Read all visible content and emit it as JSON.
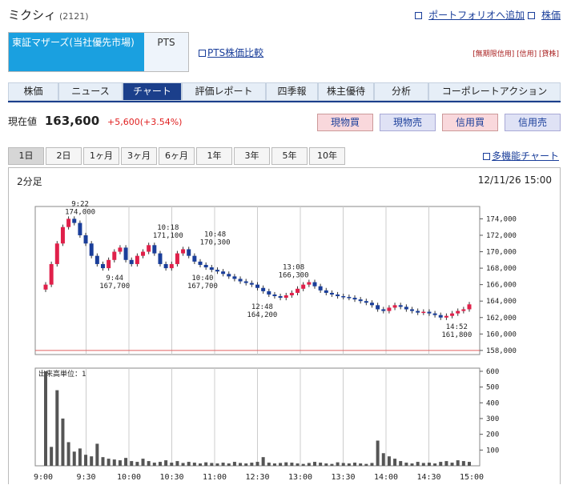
{
  "header": {
    "company": "ミクシィ",
    "code": "(2121)",
    "portfolio_link": "ポートフォリオへ追加",
    "stock_link": "株価"
  },
  "market": {
    "selected": "東証マザーズ(当社優先市場)",
    "other": "PTS",
    "pts_link": "PTS株価比較",
    "credit_info": "[無期限信用] [信用] [貸株]"
  },
  "tabs": [
    "株価",
    "ニュース",
    "チャート",
    "評価レポート",
    "四季報",
    "株主優待",
    "分析",
    "コーポレートアクション"
  ],
  "quote": {
    "label": "現在値",
    "price": "163,600",
    "change": "+5,600(+3.54%)"
  },
  "trade_buttons": [
    "現物買",
    "現物売",
    "信用買",
    "信用売"
  ],
  "periods": [
    "1日",
    "2日",
    "1ヶ月",
    "3ヶ月",
    "6ヶ月",
    "1年",
    "3年",
    "5年",
    "10年"
  ],
  "multi_chart": "多機能チャート",
  "chart": {
    "interval": "2分足",
    "datetime": "12/11/26 15:00",
    "volume_unit": "出来高単位：1"
  },
  "chart_data": {
    "type": "candlestick",
    "price_axis": {
      "ticks": [
        "174,000",
        "172,000",
        "170,000",
        "168,000",
        "166,000",
        "164,000",
        "162,000",
        "160,000",
        "158,000"
      ],
      "ylim": [
        157500,
        175500
      ]
    },
    "volume_axis": {
      "ticks": [
        "600",
        "500",
        "400",
        "300",
        "200",
        "100"
      ],
      "ylim": [
        0,
        620
      ]
    },
    "x_ticks": [
      "9:00",
      "9:30",
      "10:00",
      "10:30",
      "11:00",
      "12:30",
      "13:00",
      "13:30",
      "14:00",
      "14:30",
      "15:00"
    ],
    "reference_line": 158000,
    "annotations": [
      {
        "time": "9:22",
        "price": 174000,
        "label_time": "9:22",
        "label_price": "174,000",
        "pos": "above"
      },
      {
        "time": "9:44",
        "price": 167700,
        "label_time": "9:44",
        "label_price": "167,700",
        "pos": "below"
      },
      {
        "time": "10:18",
        "price": 171100,
        "label_time": "10:18",
        "label_price": "171,100",
        "pos": "above"
      },
      {
        "time": "10:40",
        "price": 167700,
        "label_time": "10:40",
        "label_price": "167,700",
        "pos": "below"
      },
      {
        "time": "10:48",
        "price": 170300,
        "label_time": "10:48",
        "label_price": "170,300",
        "pos": "above"
      },
      {
        "time": "12:48",
        "price": 164200,
        "label_time": "12:48",
        "label_price": "164,200",
        "pos": "below"
      },
      {
        "time": "13:08",
        "price": 166300,
        "label_time": "13:08",
        "label_price": "166,300",
        "pos": "above"
      },
      {
        "time": "14:52",
        "price": 161800,
        "label_time": "14:52",
        "label_price": "161,800",
        "pos": "below"
      }
    ],
    "close_series": [
      166000,
      168500,
      171000,
      173000,
      174000,
      173500,
      172000,
      171000,
      169500,
      168500,
      168000,
      169000,
      170000,
      170500,
      169000,
      168500,
      169500,
      170000,
      170800,
      169800,
      168500,
      168000,
      168500,
      169800,
      170300,
      169500,
      168800,
      168400,
      168100,
      167800,
      167600,
      167300,
      167000,
      166700,
      166400,
      166200,
      166000,
      165600,
      165200,
      164800,
      164600,
      164400,
      164700,
      165000,
      165500,
      166000,
      166300,
      165800,
      165300,
      165000,
      164800,
      164600,
      164500,
      164400,
      164200,
      164000,
      163800,
      163500,
      163000,
      162800,
      163200,
      163500,
      163300,
      163000,
      162800,
      162600,
      162700,
      162500,
      162300,
      162000,
      162200,
      162500,
      162800,
      163000,
      163600
    ],
    "volume_series": [
      600,
      120,
      480,
      300,
      150,
      90,
      110,
      70,
      60,
      140,
      55,
      45,
      40,
      35,
      50,
      30,
      25,
      45,
      30,
      20,
      25,
      35,
      20,
      30,
      18,
      25,
      20,
      15,
      22,
      18,
      15,
      20,
      15,
      25,
      18,
      15,
      20,
      25,
      55,
      20,
      15,
      18,
      22,
      20,
      15,
      12,
      18,
      25,
      20,
      15,
      12,
      22,
      18,
      15,
      20,
      15,
      12,
      18,
      160,
      80,
      60,
      45,
      30,
      20,
      15,
      25,
      18,
      20,
      15,
      25,
      30,
      20,
      35,
      30,
      25
    ]
  }
}
